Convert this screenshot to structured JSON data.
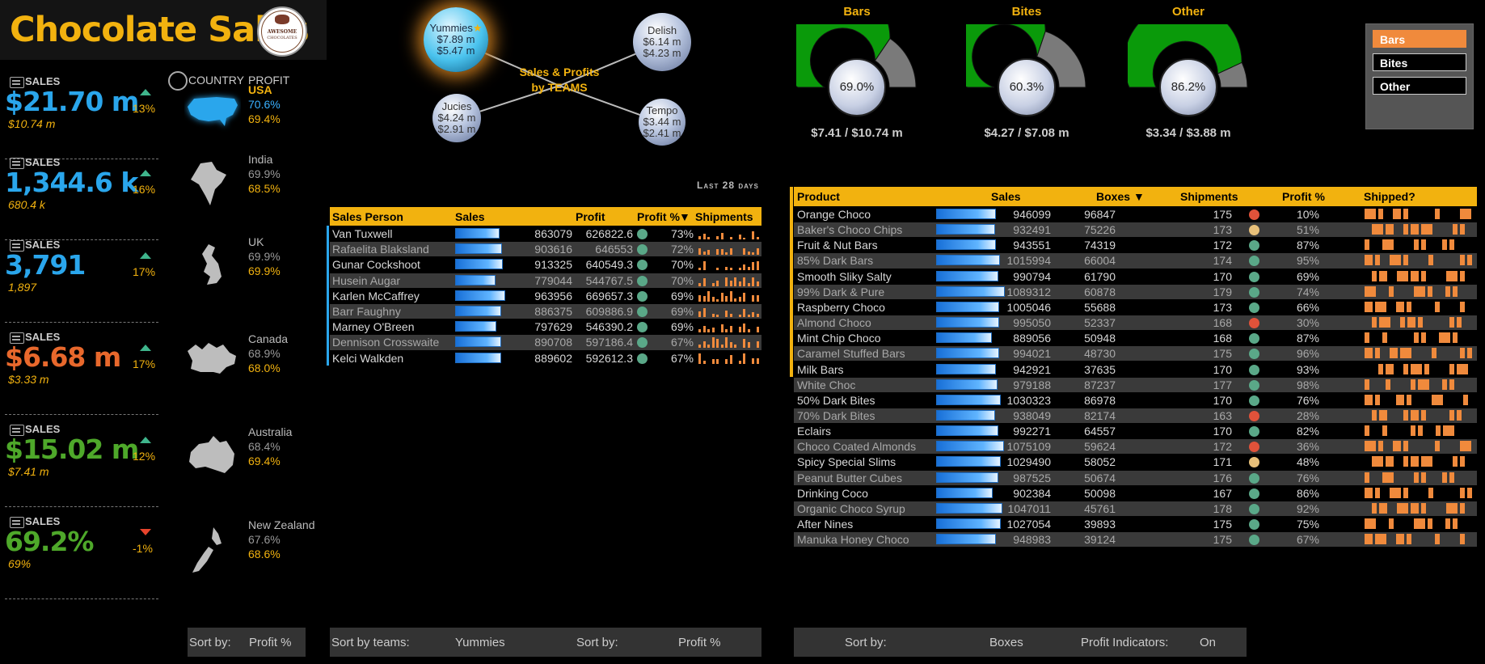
{
  "header": {
    "title": "Chocolate Sales",
    "logo_text_1": "AWESOME",
    "logo_text_2": "CHOCOLATES"
  },
  "kpis": [
    {
      "label": "SALES",
      "value": "$21.70 m",
      "sub": "$10.74 m",
      "change": "13%",
      "trend": "up",
      "color": "#2aa6ec"
    },
    {
      "label": "SALES",
      "value": "1,344.6 k",
      "sub": "680.4 k",
      "change": "16%",
      "trend": "up",
      "color": "#2aa6ec"
    },
    {
      "label": "SALES",
      "value": "3,791",
      "sub": "1,897",
      "change": "17%",
      "trend": "up",
      "color": "#2aa6ec"
    },
    {
      "label": "SALES",
      "value": "$6.68 m",
      "sub": "$3.33 m",
      "change": "17%",
      "trend": "up",
      "color": "#e8682c"
    },
    {
      "label": "SALES",
      "value": "$15.02 m",
      "sub": "$7.41 m",
      "change": "12%",
      "trend": "up",
      "color": "#4ea82a"
    },
    {
      "label": "SALES",
      "value": "69.2%",
      "sub": "69%",
      "change": "-1%",
      "trend": "down",
      "color": "#4ea82a"
    }
  ],
  "country_panel": {
    "country_header": "COUNTRY",
    "profit_header": "PROFIT",
    "countries": [
      {
        "name": "USA",
        "v1": "70.6%",
        "v2": "69.4%",
        "selected": true,
        "icon": "usa-map-icon"
      },
      {
        "name": "India",
        "v1": "69.9%",
        "v2": "68.5%",
        "selected": false,
        "icon": "india-map-icon"
      },
      {
        "name": "UK",
        "v1": "69.9%",
        "v2": "69.9%",
        "selected": false,
        "icon": "uk-map-icon"
      },
      {
        "name": "Canada",
        "v1": "68.9%",
        "v2": "68.0%",
        "selected": false,
        "icon": "canada-map-icon"
      },
      {
        "name": "Australia",
        "v1": "68.4%",
        "v2": "69.4%",
        "selected": false,
        "icon": "australia-map-icon"
      },
      {
        "name": "New Zealand",
        "v1": "67.6%",
        "v2": "68.6%",
        "selected": false,
        "icon": "new-zealand-map-icon"
      }
    ]
  },
  "teams": {
    "title_line1": "Sales & Profits",
    "title_line2": "by TEAMS",
    "bubbles": [
      {
        "name": "Yummies",
        "sales": "$7.89 m",
        "profit": "$5.47 m",
        "starred": true
      },
      {
        "name": "Delish",
        "sales": "$6.14 m",
        "profit": "$4.23 m",
        "starred": false
      },
      {
        "name": "Jucies",
        "sales": "$4.24 m",
        "profit": "$2.91 m",
        "starred": false
      },
      {
        "name": "Tempo",
        "sales": "$3.44 m",
        "profit": "$2.41 m",
        "starred": false
      }
    ]
  },
  "gauges": [
    {
      "title": "Bars",
      "value": 0.69,
      "label": "69.0%",
      "footer": "$7.41 / $10.74 m"
    },
    {
      "title": "Bites",
      "value": 0.603,
      "label": "60.3%",
      "footer": "$4.27 / $7.08 m"
    },
    {
      "title": "Other",
      "value": 0.862,
      "label": "86.2%",
      "footer": "$3.34 / $3.88 m"
    }
  ],
  "slicer": {
    "items": [
      {
        "label": "Bars",
        "selected": true
      },
      {
        "label": "Bites",
        "selected": false
      },
      {
        "label": "Other",
        "selected": false
      }
    ]
  },
  "last_days": "Last 28 days",
  "sales_person_table": {
    "headers": [
      "Sales Person",
      "Sales",
      "Profit",
      "Profit %",
      "▼",
      "Shipments"
    ],
    "max_sales": 1090000,
    "rows": [
      {
        "name": "Van Tuxwell",
        "sales": "863079",
        "sales_n": 863079,
        "profit": "626822.6",
        "pct": "73%",
        "spark": [
          0.3,
          0.5,
          0.2,
          0,
          0.3,
          0.6,
          0,
          0.2,
          0,
          0.4,
          0.1,
          0,
          0.7,
          0.2
        ]
      },
      {
        "name": "Rafaelita Blaksland",
        "sales": "903616",
        "sales_n": 903616,
        "profit": "646553",
        "pct": "72%",
        "spark": [
          0.6,
          0.3,
          0.4,
          0,
          0.5,
          0.5,
          0.2,
          0.6,
          0,
          0,
          0.6,
          0.3,
          0.2,
          0.6
        ]
      },
      {
        "name": "Gunar Cockshoot",
        "sales": "913325",
        "sales_n": 913325,
        "profit": "640549.3",
        "pct": "70%",
        "spark": [
          0.2,
          0.8,
          0,
          0,
          0.2,
          0,
          0.3,
          0.2,
          0,
          0.2,
          0.5,
          0.3,
          0.7,
          0.8
        ]
      },
      {
        "name": "Husein Augar",
        "sales": "779044",
        "sales_n": 779044,
        "profit": "544767.5",
        "pct": "70%",
        "spark": [
          0.3,
          0.7,
          0,
          0.3,
          0.5,
          0,
          0.8,
          0.5,
          0.8,
          0.4,
          0.8,
          0.3,
          0.8,
          0.4
        ]
      },
      {
        "name": "Karlen McCaffrey",
        "sales": "963956",
        "sales_n": 963956,
        "profit": "669657.3",
        "pct": "69%",
        "spark": [
          0.6,
          0.5,
          0.9,
          0.4,
          0.2,
          0.8,
          0.5,
          0.9,
          0.3,
          0.4,
          0.8,
          0,
          0.6,
          0.6
        ]
      },
      {
        "name": "Barr Faughny",
        "sales": "886375",
        "sales_n": 886375,
        "profit": "609886.9",
        "pct": "69%",
        "spark": [
          0.5,
          0.8,
          0,
          0.3,
          0.2,
          0,
          0.6,
          0.3,
          0,
          0.2,
          0.7,
          0.2,
          0.4,
          0.3
        ]
      },
      {
        "name": "Marney O'Breen",
        "sales": "797629",
        "sales_n": 797629,
        "profit": "546390.2",
        "pct": "69%",
        "spark": [
          0.3,
          0.6,
          0.3,
          0.4,
          0,
          0.7,
          0.3,
          0.6,
          0,
          0.5,
          0.8,
          0.3,
          0,
          0.5
        ]
      },
      {
        "name": "Dennison Crosswaite",
        "sales": "890708",
        "sales_n": 890708,
        "profit": "597186.4",
        "pct": "67%",
        "spark": [
          0.3,
          0.6,
          0.3,
          0.9,
          0.8,
          0.3,
          0.9,
          0.5,
          0.3,
          0,
          0.8,
          0.5,
          0,
          0.6
        ]
      },
      {
        "name": "Kelci Walkden",
        "sales": "889602",
        "sales_n": 889602,
        "profit": "592612.3",
        "pct": "67%",
        "spark": [
          0.9,
          0.3,
          0,
          0.4,
          0.4,
          0,
          0.4,
          0.8,
          0,
          0.3,
          0.9,
          0,
          0.5,
          0.5
        ]
      }
    ]
  },
  "product_table": {
    "headers": [
      "Product",
      "Sales",
      "Boxes",
      "▼",
      "Shipments",
      "Profit %",
      "Shipped?"
    ],
    "max_sales": 1090000,
    "rows": [
      {
        "name": "Orange Choco",
        "sales": "946099",
        "sales_n": 946099,
        "boxes": "96847",
        "ship": "175",
        "dot": "#e0523a",
        "pct": "10%",
        "hl": true
      },
      {
        "name": "Baker's Choco Chips",
        "sales": "932491",
        "sales_n": 932491,
        "boxes": "75226",
        "ship": "173",
        "dot": "#e8c07a",
        "pct": "51%",
        "hl": true
      },
      {
        "name": "Fruit & Nut Bars",
        "sales": "943551",
        "sales_n": 943551,
        "boxes": "74319",
        "ship": "172",
        "dot": "#5aa888",
        "pct": "87%",
        "hl": true
      },
      {
        "name": "85% Dark Bars",
        "sales": "1015994",
        "sales_n": 1015994,
        "boxes": "66004",
        "ship": "174",
        "dot": "#5aa888",
        "pct": "95%",
        "hl": true
      },
      {
        "name": "Smooth Sliky Salty",
        "sales": "990794",
        "sales_n": 990794,
        "boxes": "61790",
        "ship": "170",
        "dot": "#5aa888",
        "pct": "69%",
        "hl": true
      },
      {
        "name": "99% Dark & Pure",
        "sales": "1089312",
        "sales_n": 1089312,
        "boxes": "60878",
        "ship": "179",
        "dot": "#5aa888",
        "pct": "74%",
        "hl": true
      },
      {
        "name": "Raspberry Choco",
        "sales": "1005046",
        "sales_n": 1005046,
        "boxes": "55688",
        "ship": "173",
        "dot": "#5aa888",
        "pct": "66%",
        "hl": true
      },
      {
        "name": "Almond Choco",
        "sales": "995050",
        "sales_n": 995050,
        "boxes": "52337",
        "ship": "168",
        "dot": "#e0523a",
        "pct": "30%",
        "hl": true
      },
      {
        "name": "Mint Chip Choco",
        "sales": "889056",
        "sales_n": 889056,
        "boxes": "50948",
        "ship": "168",
        "dot": "#5aa888",
        "pct": "87%",
        "hl": true
      },
      {
        "name": "Caramel Stuffed Bars",
        "sales": "994021",
        "sales_n": 994021,
        "boxes": "48730",
        "ship": "175",
        "dot": "#5aa888",
        "pct": "96%",
        "hl": true
      },
      {
        "name": "Milk Bars",
        "sales": "942921",
        "sales_n": 942921,
        "boxes": "37635",
        "ship": "170",
        "dot": "#5aa888",
        "pct": "93%",
        "hl": true
      },
      {
        "name": "White Choc",
        "sales": "979188",
        "sales_n": 979188,
        "boxes": "87237",
        "ship": "177",
        "dot": "#5aa888",
        "pct": "98%",
        "hl": false
      },
      {
        "name": "50% Dark Bites",
        "sales": "1030323",
        "sales_n": 1030323,
        "boxes": "86978",
        "ship": "170",
        "dot": "#5aa888",
        "pct": "76%",
        "hl": false
      },
      {
        "name": "70% Dark Bites",
        "sales": "938049",
        "sales_n": 938049,
        "boxes": "82174",
        "ship": "163",
        "dot": "#e0523a",
        "pct": "28%",
        "hl": false
      },
      {
        "name": "Eclairs",
        "sales": "992271",
        "sales_n": 992271,
        "boxes": "64557",
        "ship": "170",
        "dot": "#5aa888",
        "pct": "82%",
        "hl": false
      },
      {
        "name": "Choco Coated Almonds",
        "sales": "1075109",
        "sales_n": 1075109,
        "boxes": "59624",
        "ship": "172",
        "dot": "#e0523a",
        "pct": "36%",
        "hl": false
      },
      {
        "name": "Spicy Special Slims",
        "sales": "1029490",
        "sales_n": 1029490,
        "boxes": "58052",
        "ship": "171",
        "dot": "#e8c07a",
        "pct": "48%",
        "hl": false
      },
      {
        "name": "Peanut Butter Cubes",
        "sales": "987525",
        "sales_n": 987525,
        "boxes": "50674",
        "ship": "176",
        "dot": "#5aa888",
        "pct": "76%",
        "hl": false
      },
      {
        "name": "Drinking Coco",
        "sales": "902384",
        "sales_n": 902384,
        "boxes": "50098",
        "ship": "167",
        "dot": "#5aa888",
        "pct": "86%",
        "hl": false
      },
      {
        "name": "Organic Choco Syrup",
        "sales": "1047011",
        "sales_n": 1047011,
        "boxes": "45761",
        "ship": "178",
        "dot": "#5aa888",
        "pct": "92%",
        "hl": false
      },
      {
        "name": "After Nines",
        "sales": "1027054",
        "sales_n": 1027054,
        "boxes": "39893",
        "ship": "175",
        "dot": "#5aa888",
        "pct": "75%",
        "hl": false
      },
      {
        "name": "Manuka Honey Choco",
        "sales": "948983",
        "sales_n": 948983,
        "boxes": "39124",
        "ship": "175",
        "dot": "#5aa888",
        "pct": "67%",
        "hl": false
      }
    ]
  },
  "bottom": {
    "left_sort_label": "Sort by:",
    "left_sort_value": "Profit %",
    "teams_label": "Sort by teams:",
    "teams_value": "Yummies",
    "mid_sort_label": "Sort by:",
    "mid_sort_value": "Profit %",
    "right_sort_label": "Sort by:",
    "right_sort_value": "Boxes",
    "indicators_label": "Profit Indicators:",
    "indicators_value": "On"
  },
  "colors": {
    "accent": "#f2b20f",
    "orange": "#f08a3c",
    "blue": "#2aa6ec",
    "green_gauge": "#0a9a0a",
    "gray_gauge": "#7a7a7a"
  }
}
